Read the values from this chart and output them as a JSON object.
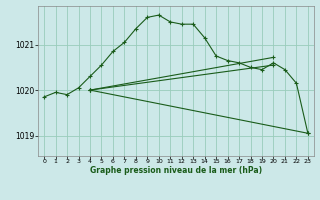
{
  "background_color": "#cce8e8",
  "grid_color": "#99ccbb",
  "line_color": "#1a5c1a",
  "title": "Graphe pression niveau de la mer (hPa)",
  "xlim": [
    -0.5,
    23.5
  ],
  "ylim": [
    1018.55,
    1021.85
  ],
  "yticks": [
    1019,
    1020,
    1021
  ],
  "xticks": [
    0,
    1,
    2,
    3,
    4,
    5,
    6,
    7,
    8,
    9,
    10,
    11,
    12,
    13,
    14,
    15,
    16,
    17,
    18,
    19,
    20,
    21,
    22,
    23
  ],
  "line1": {
    "x": [
      0,
      1,
      2,
      3,
      4,
      5,
      6,
      7,
      8,
      9,
      10,
      11,
      12,
      13,
      14,
      15,
      16,
      17,
      18,
      19,
      20,
      21,
      22,
      23
    ],
    "y": [
      1019.85,
      1019.95,
      1019.9,
      1020.05,
      1020.3,
      1020.55,
      1020.85,
      1021.05,
      1021.35,
      1021.6,
      1021.65,
      1021.5,
      1021.45,
      1021.45,
      1021.15,
      1020.75,
      1020.65,
      1020.6,
      1020.5,
      1020.45,
      1020.6,
      1020.45,
      1020.15,
      1019.05
    ]
  },
  "line2": {
    "x": [
      4,
      23
    ],
    "y": [
      1020.0,
      1019.05
    ]
  },
  "line3": {
    "x": [
      4,
      20
    ],
    "y": [
      1020.0,
      1020.55
    ]
  },
  "line4": {
    "x": [
      4,
      20
    ],
    "y": [
      1020.0,
      1020.72
    ]
  }
}
